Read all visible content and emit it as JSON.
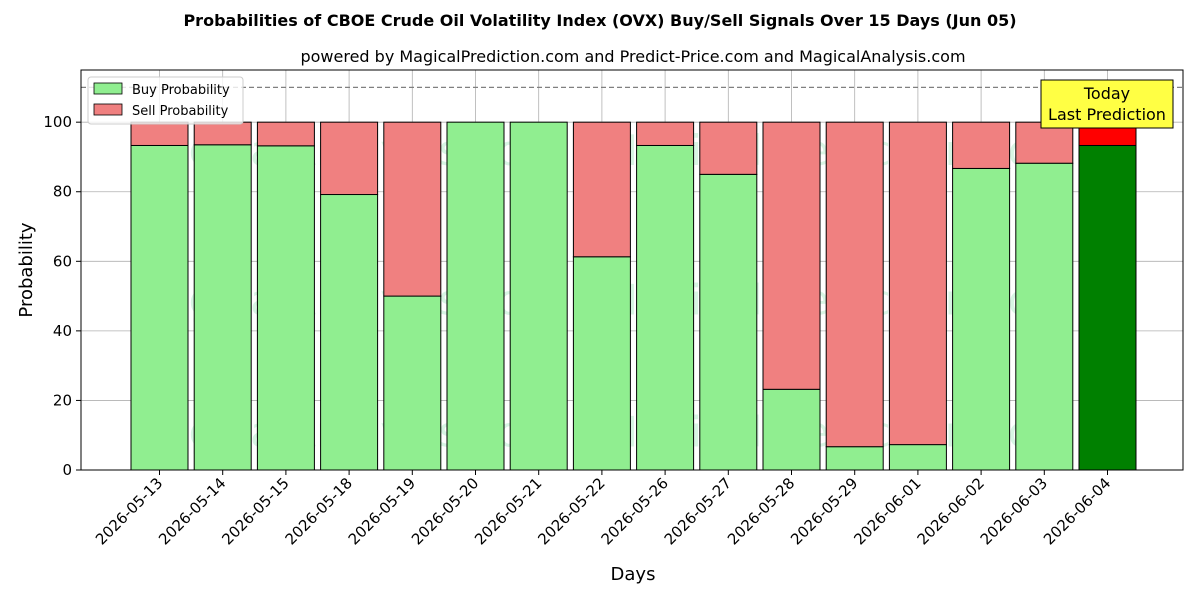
{
  "chart_data": {
    "type": "bar",
    "stacked": true,
    "title": "Probabilities of CBOE Crude Oil Volatility Index (OVX) Buy/Sell Signals Over 15 Days (Jun 05)",
    "subtitle": "powered by MagicalPrediction.com and Predict-Price.com and MagicalAnalysis.com",
    "xlabel": "Days",
    "ylabel": "Probability",
    "ylim": [
      0,
      115
    ],
    "yticks": [
      0,
      20,
      40,
      60,
      80,
      100
    ],
    "grid": true,
    "legend_position": "top-left",
    "reference_line": {
      "y": 110,
      "style": "dashed",
      "color": "#808080"
    },
    "categories": [
      "2026-05-13",
      "2026-05-14",
      "2026-05-15",
      "2026-05-18",
      "2026-05-19",
      "2026-05-20",
      "2026-05-21",
      "2026-05-22",
      "2026-05-26",
      "2026-05-27",
      "2026-05-28",
      "2026-05-29",
      "2026-06-01",
      "2026-06-02",
      "2026-06-03",
      "2026-06-04"
    ],
    "series": [
      {
        "name": "Buy Probability",
        "color": "#90ee90",
        "highlight_color": "#008000",
        "values": [
          93.3,
          93.5,
          93.2,
          79.2,
          50.0,
          100.0,
          100.0,
          61.3,
          93.3,
          85.0,
          23.2,
          6.7,
          7.3,
          86.7,
          88.2,
          93.3
        ]
      },
      {
        "name": "Sell Probability",
        "color": "#f08080",
        "highlight_color": "#ff0000",
        "values": [
          6.7,
          6.5,
          6.8,
          20.8,
          50.0,
          0.0,
          0.0,
          38.7,
          6.7,
          15.0,
          76.8,
          93.3,
          92.7,
          13.3,
          11.8,
          6.7
        ]
      }
    ],
    "highlight_index": 15,
    "annotation": {
      "lines": [
        "Today",
        "Last Prediction"
      ],
      "bg": "#ffff44"
    },
    "watermarks": [
      "MagicalAnalysis.com",
      "MagicalPrediction.com"
    ]
  }
}
